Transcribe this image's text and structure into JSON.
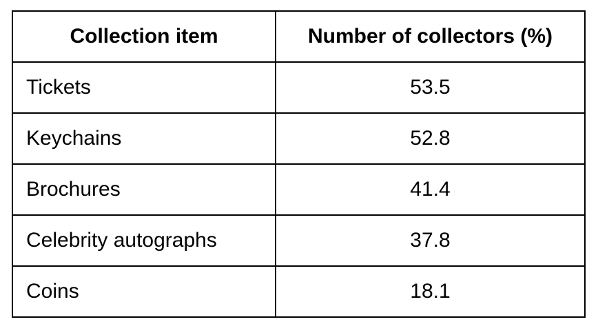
{
  "table": {
    "headers": [
      "Collection item",
      "Number of collectors (%)"
    ],
    "rows": [
      [
        "Tickets",
        "53.5"
      ],
      [
        "Keychains",
        "52.8"
      ],
      [
        "Brochures",
        "41.4"
      ],
      [
        "Celebrity autographs",
        "37.8"
      ],
      [
        "Coins",
        "18.1"
      ]
    ]
  }
}
